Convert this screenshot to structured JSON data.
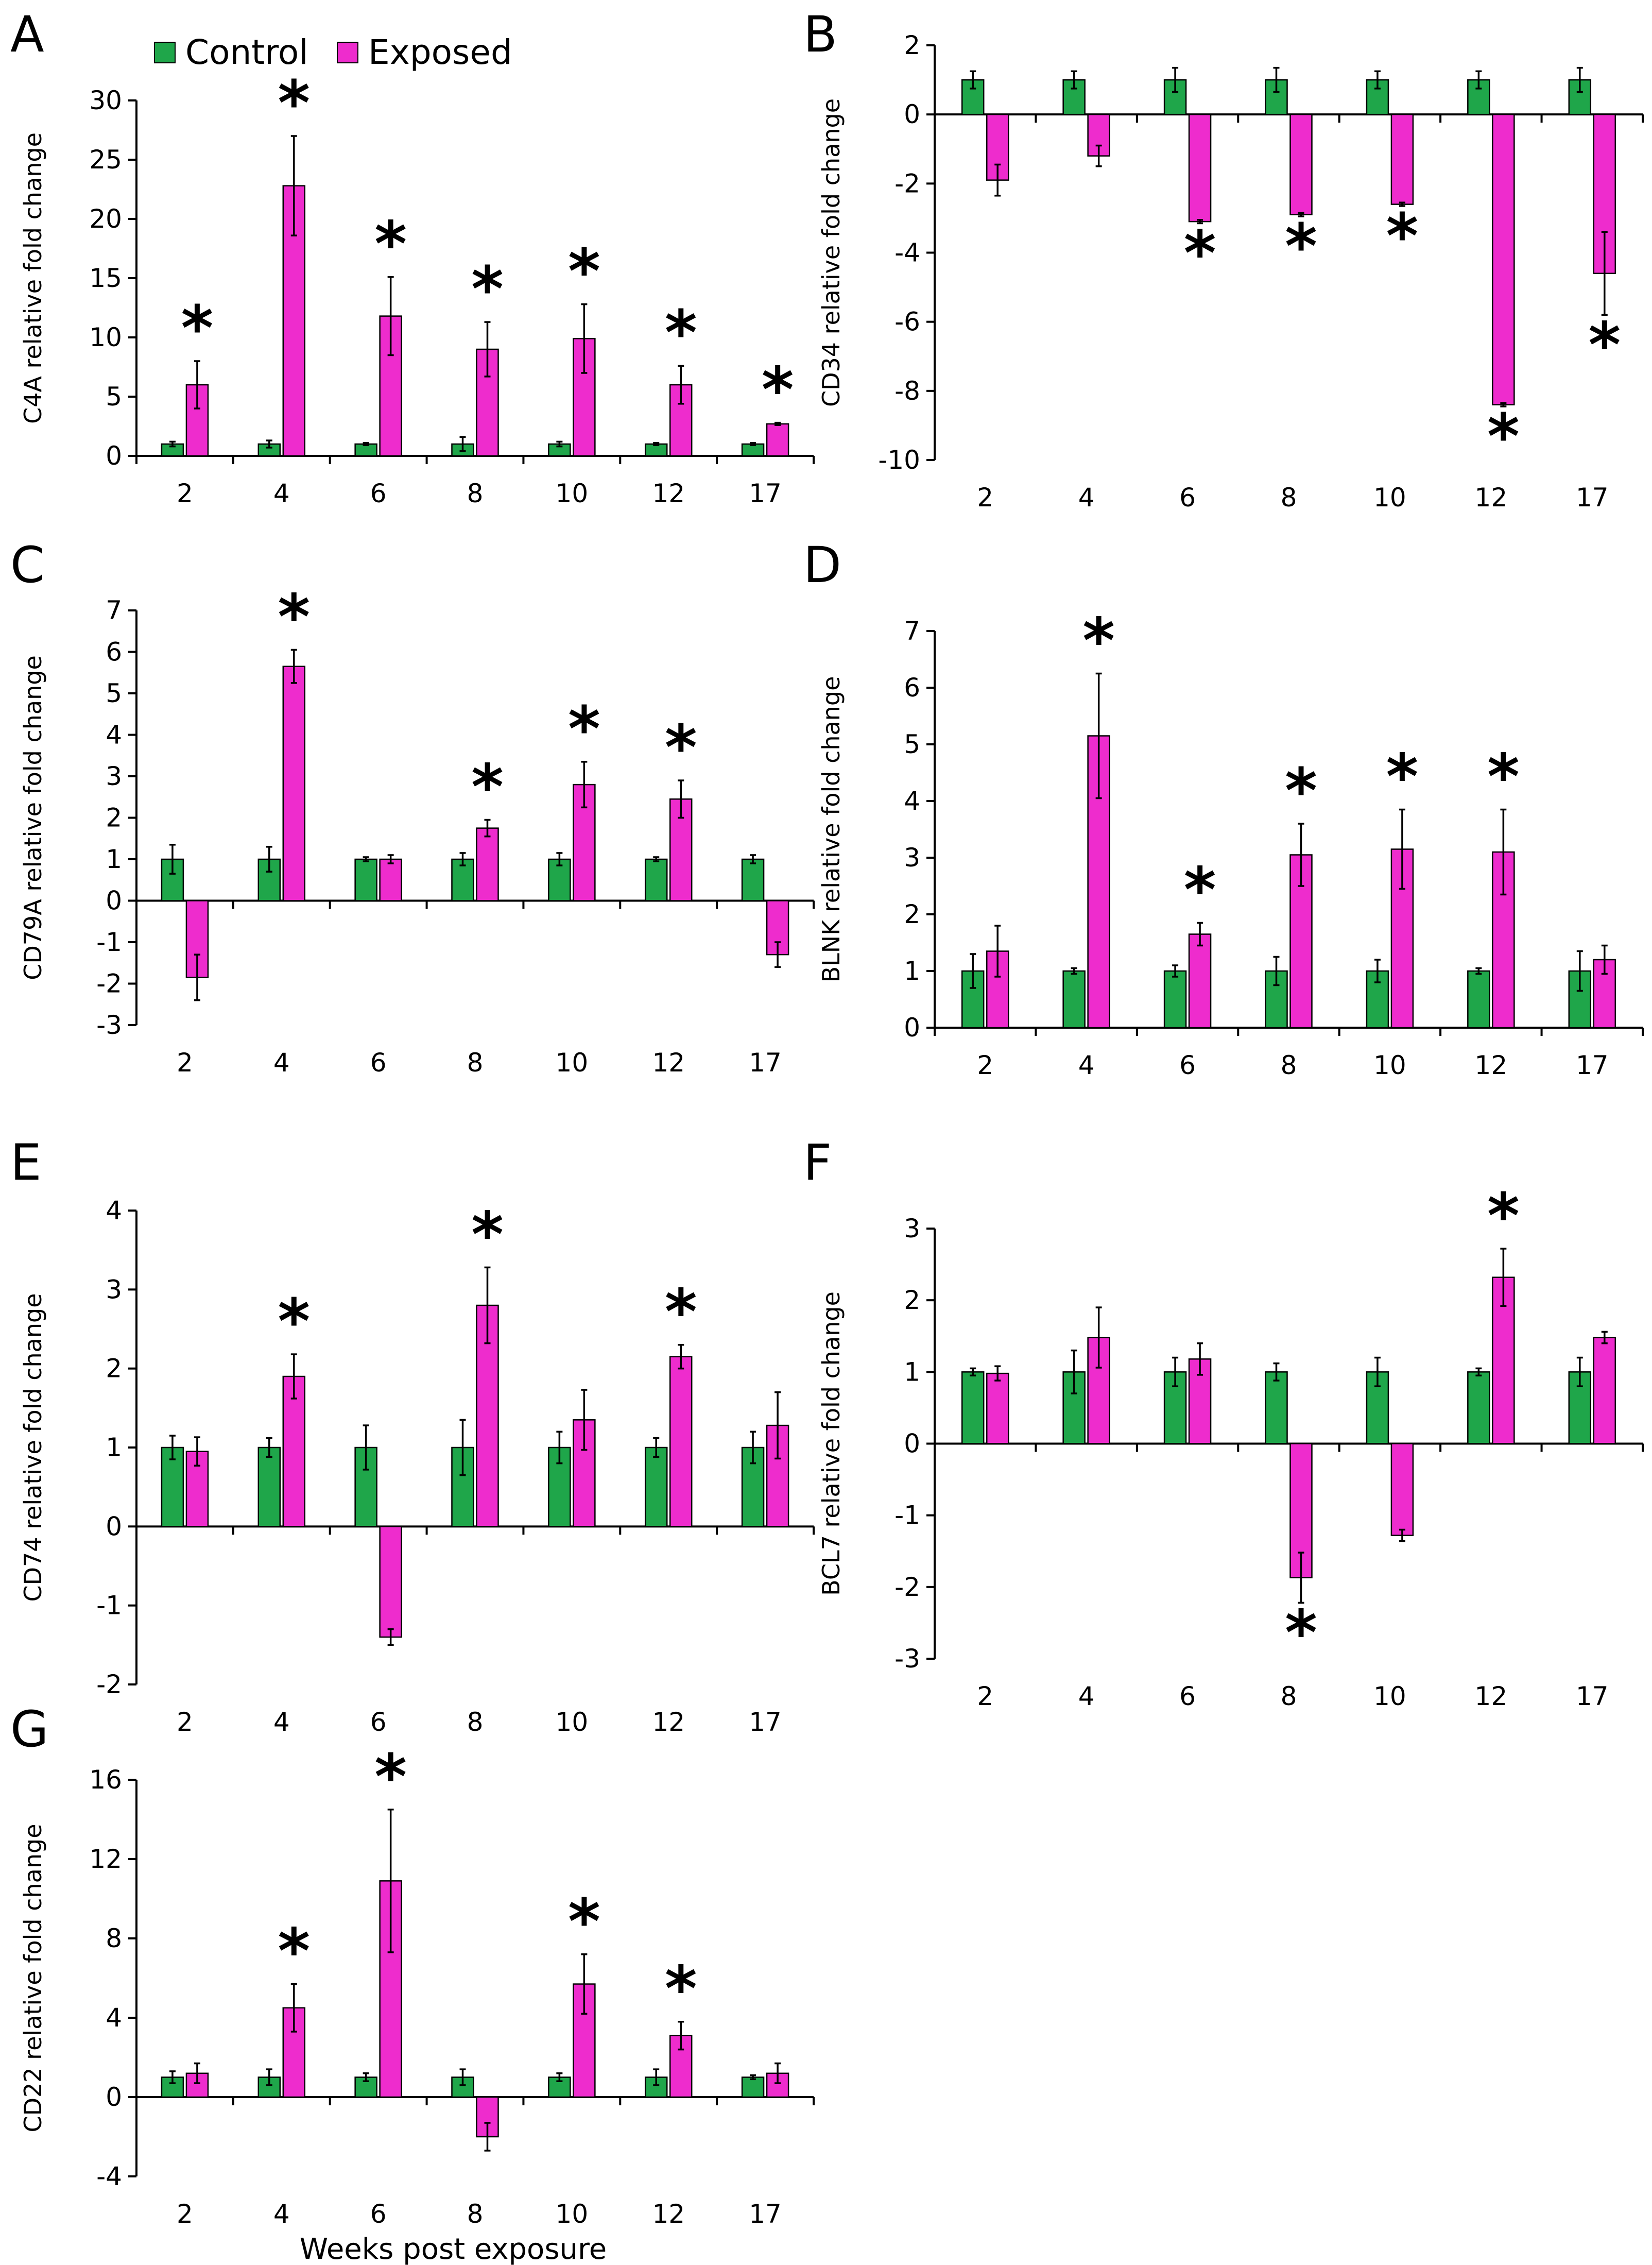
{
  "legend": {
    "control": "Control",
    "exposed": "Exposed"
  },
  "colors": {
    "control": "#1fa64a",
    "exposed": "#ee2ccd",
    "axis": "#000000"
  },
  "xlabel": "Weeks post exposure",
  "chart_data": [
    {
      "type": "bar",
      "panel": "A",
      "ylabel": "C4A relative fold change",
      "categories": [
        "2",
        "4",
        "6",
        "8",
        "10",
        "12",
        "17"
      ],
      "ylim": [
        0,
        30
      ],
      "yticks": [
        0,
        5,
        10,
        15,
        20,
        25,
        30
      ],
      "series": [
        {
          "name": "Control",
          "values": [
            1,
            1,
            1,
            1,
            1,
            1,
            1
          ],
          "errors": [
            0.2,
            0.3,
            0.1,
            0.6,
            0.2,
            0.1,
            0.1
          ]
        },
        {
          "name": "Exposed",
          "values": [
            6,
            22.8,
            11.8,
            9,
            9.9,
            6,
            2.7
          ],
          "errors": [
            2,
            4.2,
            3.3,
            2.3,
            2.9,
            1.6,
            0.1
          ]
        }
      ],
      "significant": [
        true,
        true,
        true,
        true,
        true,
        true,
        true
      ]
    },
    {
      "type": "bar",
      "panel": "B",
      "ylabel": "CD34 relative fold change",
      "categories": [
        "2",
        "4",
        "6",
        "8",
        "10",
        "12",
        "17"
      ],
      "ylim": [
        -10,
        2
      ],
      "yticks": [
        -10,
        -8,
        -6,
        -4,
        -2,
        0,
        2
      ],
      "series": [
        {
          "name": "Control",
          "values": [
            1,
            1,
            1,
            1,
            1,
            1,
            1
          ],
          "errors": [
            0.25,
            0.25,
            0.35,
            0.35,
            0.25,
            0.25,
            0.35
          ]
        },
        {
          "name": "Exposed",
          "values": [
            -1.9,
            -1.2,
            -3.1,
            -2.9,
            -2.6,
            -8.4,
            -4.6
          ],
          "errors": [
            0.45,
            0.3,
            0.05,
            0.05,
            0.05,
            0.05,
            1.2
          ]
        }
      ],
      "significant": [
        false,
        false,
        true,
        true,
        true,
        true,
        true
      ]
    },
    {
      "type": "bar",
      "panel": "C",
      "ylabel": "CD79A relative fold change",
      "categories": [
        "2",
        "4",
        "6",
        "8",
        "10",
        "12",
        "17"
      ],
      "ylim": [
        -3,
        7
      ],
      "yticks": [
        -3,
        -2,
        -1,
        0,
        1,
        2,
        3,
        4,
        5,
        6,
        7
      ],
      "series": [
        {
          "name": "Control",
          "values": [
            1,
            1,
            1,
            1,
            1,
            1,
            1
          ],
          "errors": [
            0.35,
            0.3,
            0.05,
            0.15,
            0.15,
            0.05,
            0.1
          ]
        },
        {
          "name": "Exposed",
          "values": [
            -1.85,
            5.65,
            1,
            1.75,
            2.8,
            2.45,
            -1.3
          ],
          "errors": [
            0.55,
            0.4,
            0.1,
            0.2,
            0.55,
            0.45,
            0.3
          ]
        }
      ],
      "significant": [
        false,
        true,
        false,
        true,
        true,
        true,
        false
      ]
    },
    {
      "type": "bar",
      "panel": "D",
      "ylabel": "BLNK relative fold change",
      "categories": [
        "2",
        "4",
        "6",
        "8",
        "10",
        "12",
        "17"
      ],
      "ylim": [
        0,
        7
      ],
      "yticks": [
        0,
        1,
        2,
        3,
        4,
        5,
        6,
        7
      ],
      "series": [
        {
          "name": "Control",
          "values": [
            1,
            1,
            1,
            1,
            1,
            1,
            1
          ],
          "errors": [
            0.3,
            0.05,
            0.1,
            0.25,
            0.2,
            0.05,
            0.35
          ]
        },
        {
          "name": "Exposed",
          "values": [
            1.35,
            5.15,
            1.65,
            3.05,
            3.15,
            3.1,
            1.2
          ],
          "errors": [
            0.45,
            1.1,
            0.2,
            0.55,
            0.7,
            0.75,
            0.25
          ]
        }
      ],
      "significant": [
        false,
        true,
        true,
        true,
        true,
        true,
        false
      ]
    },
    {
      "type": "bar",
      "panel": "E",
      "ylabel": "CD74 relative fold change",
      "categories": [
        "2",
        "4",
        "6",
        "8",
        "10",
        "12",
        "17"
      ],
      "ylim": [
        -2,
        4
      ],
      "yticks": [
        -2,
        -1,
        0,
        1,
        2,
        3,
        4
      ],
      "series": [
        {
          "name": "Control",
          "values": [
            1,
            1,
            1,
            1,
            1,
            1,
            1
          ],
          "errors": [
            0.15,
            0.12,
            0.28,
            0.35,
            0.2,
            0.12,
            0.2
          ]
        },
        {
          "name": "Exposed",
          "values": [
            0.95,
            1.9,
            -1.4,
            2.8,
            1.35,
            2.15,
            1.28
          ],
          "errors": [
            0.18,
            0.28,
            0.1,
            0.48,
            0.38,
            0.15,
            0.42
          ]
        }
      ],
      "significant": [
        false,
        true,
        false,
        true,
        false,
        true,
        false
      ]
    },
    {
      "type": "bar",
      "panel": "F",
      "ylabel": "BCL7 relative fold change",
      "categories": [
        "2",
        "4",
        "6",
        "8",
        "10",
        "12",
        "17"
      ],
      "ylim": [
        -3,
        3
      ],
      "yticks": [
        -3,
        -2,
        -1,
        0,
        1,
        2,
        3
      ],
      "series": [
        {
          "name": "Control",
          "values": [
            1,
            1,
            1,
            1,
            1,
            1,
            1
          ],
          "errors": [
            0.05,
            0.3,
            0.2,
            0.12,
            0.2,
            0.05,
            0.2
          ]
        },
        {
          "name": "Exposed",
          "values": [
            0.98,
            1.48,
            1.18,
            -1.87,
            -1.28,
            2.32,
            1.48
          ],
          "errors": [
            0.1,
            0.42,
            0.22,
            0.35,
            0.08,
            0.4,
            0.08
          ]
        }
      ],
      "significant": [
        false,
        false,
        false,
        true,
        false,
        true,
        false
      ]
    },
    {
      "type": "bar",
      "panel": "G",
      "ylabel": "CD22 relative fold change",
      "categories": [
        "2",
        "4",
        "6",
        "8",
        "10",
        "12",
        "17"
      ],
      "ylim": [
        -4,
        16
      ],
      "yticks": [
        -4,
        0,
        4,
        8,
        12,
        16
      ],
      "series": [
        {
          "name": "Control",
          "values": [
            1,
            1,
            1,
            1,
            1,
            1,
            1
          ],
          "errors": [
            0.3,
            0.4,
            0.2,
            0.4,
            0.2,
            0.4,
            0.1
          ]
        },
        {
          "name": "Exposed",
          "values": [
            1.2,
            4.5,
            10.9,
            -2,
            5.7,
            3.1,
            1.2
          ],
          "errors": [
            0.5,
            1.2,
            3.6,
            0.7,
            1.5,
            0.7,
            0.5
          ]
        }
      ],
      "significant": [
        false,
        true,
        true,
        false,
        true,
        true,
        false
      ]
    }
  ]
}
